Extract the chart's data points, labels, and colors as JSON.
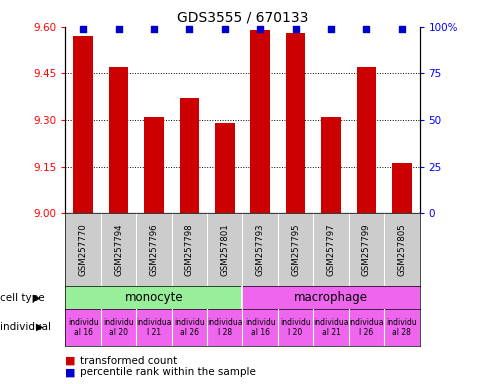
{
  "title": "GDS3555 / 670133",
  "samples": [
    "GSM257770",
    "GSM257794",
    "GSM257796",
    "GSM257798",
    "GSM257801",
    "GSM257793",
    "GSM257795",
    "GSM257797",
    "GSM257799",
    "GSM257805"
  ],
  "bar_values": [
    9.57,
    9.47,
    9.31,
    9.37,
    9.29,
    9.59,
    9.58,
    9.31,
    9.47,
    9.16
  ],
  "percentile_values": [
    99,
    99,
    99,
    99,
    99,
    99,
    99,
    99,
    99,
    99
  ],
  "ylim_left": [
    9.0,
    9.6
  ],
  "ylim_right": [
    0,
    100
  ],
  "yticks_left": [
    9.0,
    9.15,
    9.3,
    9.45,
    9.6
  ],
  "yticks_right": [
    0,
    25,
    50,
    75,
    100
  ],
  "bar_color": "#cc0000",
  "dot_color": "#0000cc",
  "cell_type_color_monocyte": "#99ee99",
  "cell_type_color_macrophage": "#ee66ee",
  "individual_color": "#ee66ee",
  "label_cell_type": "cell type",
  "label_individual": "individual",
  "legend_bar": "transformed count",
  "legend_dot": "percentile rank within the sample",
  "background_color": "#ffffff",
  "sample_label_bg": "#cccccc",
  "ind_labels": [
    "individu\nal 16",
    "individu\nal 20",
    "individua\nl 21",
    "individu\nal 26",
    "individua\nl 28",
    "individu\nal 16",
    "individu\nl 20",
    "individua\nal 21",
    "individua\nl 26",
    "individu\nal 28"
  ]
}
